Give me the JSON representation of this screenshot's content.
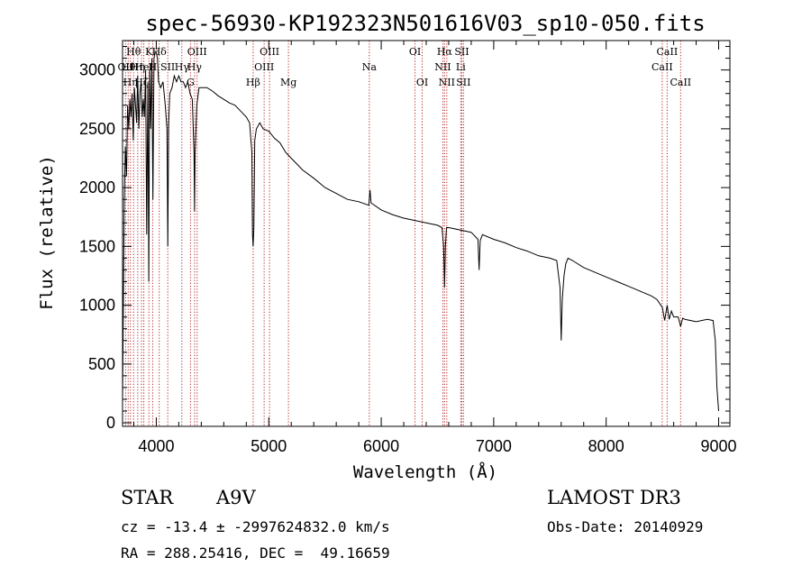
{
  "chart_data": {
    "type": "line",
    "title": "spec-56930-KP192323N501616V03_sp10-050.fits",
    "xlabel": "Wavelength (Å)",
    "ylabel": "Flux (relative)",
    "xlim": [
      3700,
      9100
    ],
    "ylim": [
      -30,
      3250
    ],
    "x_ticks": [
      4000,
      5000,
      6000,
      7000,
      8000,
      9000
    ],
    "y_ticks": [
      0,
      500,
      1000,
      1500,
      2000,
      2500,
      3000
    ],
    "grid": false,
    "series": [
      {
        "name": "spectrum",
        "x": [
          3700,
          3715,
          3725,
          3735,
          3745,
          3755,
          3765,
          3775,
          3785,
          3795,
          3805,
          3815,
          3825,
          3835,
          3845,
          3855,
          3865,
          3875,
          3885,
          3895,
          3905,
          3915,
          3925,
          3933,
          3941,
          3950,
          3960,
          3970,
          3980,
          3990,
          4000,
          4010,
          4020,
          4040,
          4060,
          4080,
          4095,
          4102,
          4110,
          4120,
          4140,
          4160,
          4180,
          4200,
          4220,
          4240,
          4260,
          4280,
          4300,
          4320,
          4335,
          4340,
          4345,
          4360,
          4380,
          4400,
          4450,
          4500,
          4550,
          4600,
          4650,
          4700,
          4750,
          4800,
          4830,
          4850,
          4855,
          4861,
          4867,
          4875,
          4890,
          4920,
          4950,
          5000,
          5050,
          5100,
          5150,
          5200,
          5250,
          5300,
          5400,
          5500,
          5600,
          5700,
          5800,
          5890,
          5900,
          5910,
          6000,
          6100,
          6200,
          6300,
          6400,
          6500,
          6540,
          6555,
          6563,
          6571,
          6580,
          6600,
          6700,
          6800,
          6860,
          6870,
          6880,
          6900,
          7000,
          7100,
          7200,
          7300,
          7400,
          7500,
          7560,
          7590,
          7600,
          7610,
          7625,
          7640,
          7660,
          7700,
          7800,
          7900,
          8000,
          8100,
          8200,
          8300,
          8400,
          8450,
          8500,
          8520,
          8542,
          8560,
          8580,
          8600,
          8640,
          8662,
          8680,
          8700,
          8800,
          8900,
          8950,
          8970,
          8985,
          9000
        ],
        "y": [
          200,
          1900,
          2350,
          2100,
          2700,
          2500,
          2750,
          2600,
          2800,
          2400,
          2850,
          2700,
          2550,
          2950,
          2500,
          2800,
          2900,
          2600,
          2750,
          2600,
          3000,
          1600,
          2900,
          1200,
          3000,
          2500,
          3100,
          1900,
          3100,
          3150,
          3150,
          3100,
          2900,
          2850,
          2900,
          2700,
          2500,
          1500,
          2550,
          2800,
          2850,
          2950,
          2900,
          2950,
          2900,
          2900,
          2850,
          2900,
          2800,
          2750,
          2300,
          1800,
          2300,
          2700,
          2850,
          2850,
          2850,
          2820,
          2780,
          2750,
          2720,
          2700,
          2650,
          2600,
          2550,
          2300,
          1600,
          1500,
          1650,
          2400,
          2500,
          2550,
          2500,
          2480,
          2420,
          2380,
          2300,
          2250,
          2200,
          2150,
          2080,
          2000,
          1950,
          1900,
          1880,
          1850,
          1980,
          1870,
          1810,
          1770,
          1740,
          1720,
          1700,
          1680,
          1660,
          1500,
          1150,
          1500,
          1660,
          1660,
          1640,
          1620,
          1560,
          1300,
          1550,
          1600,
          1560,
          1530,
          1490,
          1460,
          1420,
          1400,
          1380,
          1150,
          700,
          1050,
          1250,
          1350,
          1400,
          1380,
          1320,
          1280,
          1240,
          1200,
          1160,
          1120,
          1080,
          1050,
          980,
          870,
          1000,
          880,
          950,
          900,
          900,
          820,
          890,
          880,
          860,
          880,
          870,
          700,
          300,
          100
        ]
      }
    ],
    "line_markers": [
      {
        "wl": 3727,
        "row": 2,
        "label": "OII"
      },
      {
        "wl": 3750,
        "row": 2,
        "label": "Hθ"
      },
      {
        "wl": 3770,
        "row": 3,
        "label": "Hη"
      },
      {
        "wl": 3798,
        "row": 1,
        "label": "Hθ"
      },
      {
        "wl": 3835,
        "row": 2,
        "label": "Hη"
      },
      {
        "wl": 3869,
        "row": 3,
        "label": "Hζ"
      },
      {
        "wl": 3889,
        "row": 2,
        "label": "HeI"
      },
      {
        "wl": 3934,
        "row": 1,
        "label": "K"
      },
      {
        "wl": 3968,
        "row": 2,
        "label": "H"
      },
      {
        "wl": 4026,
        "row": 1,
        "label": "Hδ"
      },
      {
        "wl": 4102,
        "row": 2,
        "label": "SII"
      },
      {
        "wl": 4227,
        "row": 2,
        "label": "Hγ"
      },
      {
        "wl": 4304,
        "row": 3,
        "label": "G"
      },
      {
        "wl": 4340,
        "row": 2,
        "label": "Hγ"
      },
      {
        "wl": 4363,
        "row": 1,
        "label": "OIII"
      },
      {
        "wl": 4861,
        "row": 3,
        "label": "Hβ"
      },
      {
        "wl": 4959,
        "row": 2,
        "label": "OIII"
      },
      {
        "wl": 5007,
        "row": 1,
        "label": "OIII"
      },
      {
        "wl": 5175,
        "row": 3,
        "label": "Mg"
      },
      {
        "wl": 5894,
        "row": 2,
        "label": "Na"
      },
      {
        "wl": 6300,
        "row": 1,
        "label": "OI"
      },
      {
        "wl": 6364,
        "row": 3,
        "label": "OI"
      },
      {
        "wl": 6548,
        "row": 2,
        "label": "NII"
      },
      {
        "wl": 6563,
        "row": 1,
        "label": "Hα"
      },
      {
        "wl": 6583,
        "row": 3,
        "label": "NII"
      },
      {
        "wl": 6707,
        "row": 2,
        "label": "Li"
      },
      {
        "wl": 6716,
        "row": 1,
        "label": "SII"
      },
      {
        "wl": 6731,
        "row": 3,
        "label": "SII"
      },
      {
        "wl": 8498,
        "row": 2,
        "label": "CaII"
      },
      {
        "wl": 8542,
        "row": 1,
        "label": "CaII"
      },
      {
        "wl": 8662,
        "row": 3,
        "label": "CaII"
      }
    ]
  },
  "info": {
    "class": "STAR",
    "subclass": "A9V",
    "survey": "LAMOST DR3",
    "cz": "cz = -13.4 ± -2997624832.0 km/s",
    "obs_date": "Obs-Date: 20140929",
    "radec": "RA = 288.25416, DEC =  49.16659"
  },
  "colors": {
    "marker": "#b22222",
    "spectrum": "#000000"
  }
}
